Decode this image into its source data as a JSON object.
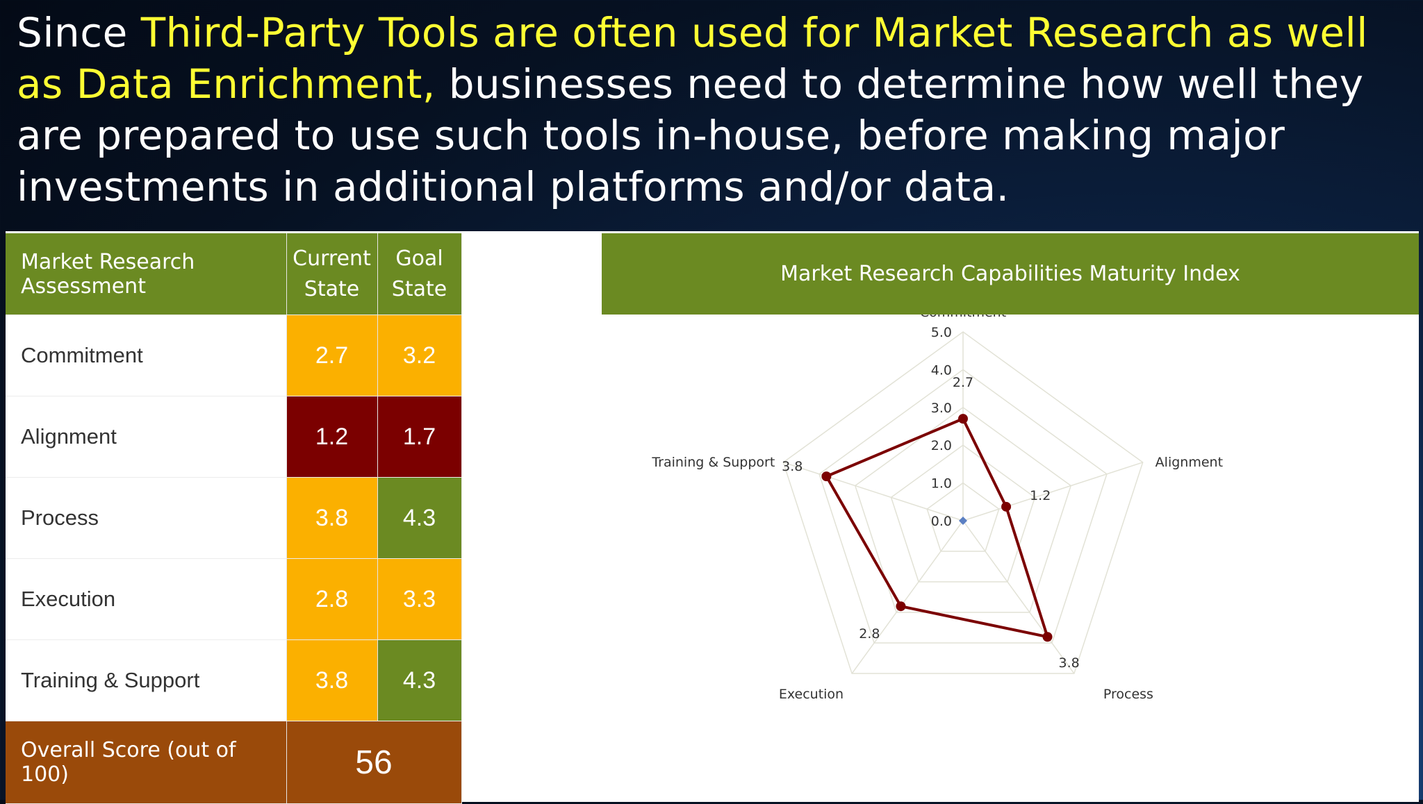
{
  "headline": {
    "part1": "Since ",
    "highlight": "Third-Party Tools are often used for Market Research as well as Data Enrichment,",
    "part2": " businesses need to determine how well they are prepared to use such tools in-house, before making major investments in additional platforms and/or data."
  },
  "table": {
    "headers": {
      "assessment": "Market Research Assessment",
      "current": "Current State",
      "goal": "Goal State"
    },
    "rows": [
      {
        "label": "Commitment",
        "current": "2.7",
        "goal": "3.2",
        "current_color": "#fbb000",
        "goal_color": "#fbb000"
      },
      {
        "label": "Alignment",
        "current": "1.2",
        "goal": "1.7",
        "current_color": "#7b0000",
        "goal_color": "#7b0000"
      },
      {
        "label": "Process",
        "current": "3.8",
        "goal": "4.3",
        "current_color": "#fbb000",
        "goal_color": "#6b8a22"
      },
      {
        "label": "Execution",
        "current": "2.8",
        "goal": "3.3",
        "current_color": "#fbb000",
        "goal_color": "#fbb000"
      },
      {
        "label": "Training & Support",
        "current": "3.8",
        "goal": "4.3",
        "current_color": "#fbb000",
        "goal_color": "#6b8a22"
      }
    ],
    "overall": {
      "label": "Overall Score (out of 100)",
      "value": "56"
    }
  },
  "chart_data": {
    "type": "radar",
    "title": "Market Research Capabilities Maturity Index",
    "axes": [
      "Commitment",
      "Alignment",
      "Process",
      "Execution",
      "Training & Support"
    ],
    "rlim": [
      0,
      5
    ],
    "ticks": [
      "0.0",
      "1.0",
      "2.0",
      "3.0",
      "4.0",
      "5.0"
    ],
    "series": [
      {
        "values": [
          2.7,
          1.2,
          3.8,
          2.8,
          3.8
        ],
        "labels": [
          "2.7",
          "1.2",
          "3.8",
          "2.8",
          "3.8"
        ],
        "color": "#7b0000"
      }
    ],
    "grid": true
  },
  "colors": {
    "accent_green": "#6b8a22",
    "amber": "#fbb000",
    "dark_red": "#7b0000",
    "overall_brown": "#9a4a0a",
    "highlight_yellow": "#ffff33"
  }
}
